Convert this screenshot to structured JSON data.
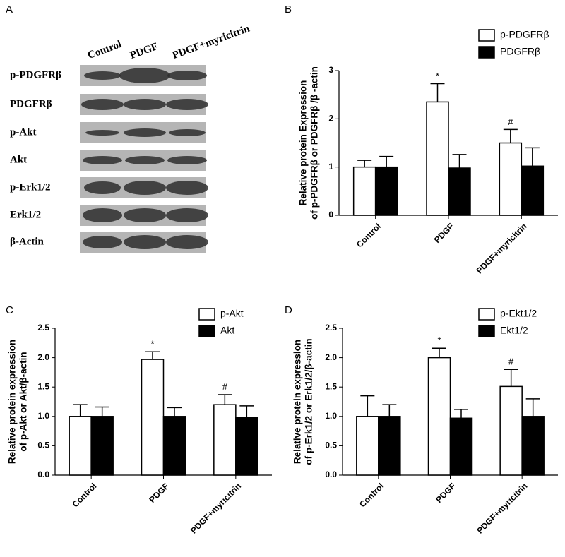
{
  "blot": {
    "panel": "A",
    "lanes": [
      "Control",
      "PDGF",
      "PDGF+myricitrin"
    ],
    "rows": [
      "p-PDGFRβ",
      "PDGFRβ",
      "p-Akt",
      "Akt",
      "p-Erk1/2",
      "Erk1/2",
      "β-Actin"
    ]
  },
  "chart_data": [
    {
      "type": "bar",
      "panel": "B",
      "ylabel": [
        "Relative protein Expression",
        "of p-PDGFRβ or PDGFRβ /β -actin"
      ],
      "categories": [
        "Control",
        "PDGF",
        "PDGF+myricitrin"
      ],
      "series": [
        {
          "name": "p-PDGFRβ",
          "color": "#ffffff",
          "values": [
            1.0,
            2.35,
            1.5
          ],
          "errors": [
            0.14,
            0.38,
            0.28
          ],
          "markers": [
            null,
            "*",
            "#"
          ]
        },
        {
          "name": "PDGFRβ",
          "color": "#000000",
          "values": [
            1.0,
            0.98,
            1.02
          ],
          "errors": [
            0.22,
            0.28,
            0.38
          ]
        }
      ],
      "ylim": [
        0,
        3
      ],
      "yticks": [
        0,
        1,
        2,
        3
      ],
      "legend": "top-right"
    },
    {
      "type": "bar",
      "panel": "C",
      "ylabel": [
        "Relative protein expression",
        "of p-Akt or Akt/β-actin"
      ],
      "categories": [
        "Control",
        "PDGF",
        "PDGF+myricitrin"
      ],
      "series": [
        {
          "name": "p-Akt",
          "color": "#ffffff",
          "values": [
            1.0,
            1.97,
            1.2
          ],
          "errors": [
            0.2,
            0.13,
            0.17
          ],
          "markers": [
            null,
            "*",
            "#"
          ]
        },
        {
          "name": "Akt",
          "color": "#000000",
          "values": [
            1.0,
            1.0,
            0.98
          ],
          "errors": [
            0.16,
            0.15,
            0.2
          ]
        }
      ],
      "ylim": [
        0,
        2.5
      ],
      "yticks": [
        {
          "value": 0,
          "label": "0.0"
        },
        {
          "value": 0.5,
          "label": "0.5"
        },
        {
          "value": 1,
          "label": "1.0"
        },
        {
          "value": 1.5,
          "label": "1.5"
        },
        {
          "value": 2,
          "label": "2.0"
        },
        {
          "value": 2.5,
          "label": "2.5"
        }
      ],
      "legend": "top-right"
    },
    {
      "type": "bar",
      "panel": "D",
      "ylabel": [
        "Relative protein expression",
        "of p-Erk1/2 or Erk1/2/β-actin"
      ],
      "categories": [
        "Control",
        "PDGF",
        "PDGF+myricitrin"
      ],
      "series": [
        {
          "name": "p-Ekt1/2",
          "color": "#ffffff",
          "values": [
            1.0,
            2.0,
            1.51
          ],
          "errors": [
            0.35,
            0.16,
            0.29
          ],
          "markers": [
            null,
            "*",
            "#"
          ]
        },
        {
          "name": "Ekt1/2",
          "color": "#000000",
          "values": [
            1.0,
            0.97,
            1.0
          ],
          "errors": [
            0.2,
            0.15,
            0.3
          ]
        }
      ],
      "ylim": [
        0,
        2.5
      ],
      "yticks": [
        {
          "value": 0,
          "label": "0.0"
        },
        {
          "value": 0.5,
          "label": "0.5"
        },
        {
          "value": 1,
          "label": "1.0"
        },
        {
          "value": 1.5,
          "label": "1.5"
        },
        {
          "value": 2,
          "label": "2.0"
        },
        {
          "value": 2.5,
          "label": "2.5"
        }
      ],
      "legend": "top-right"
    }
  ]
}
